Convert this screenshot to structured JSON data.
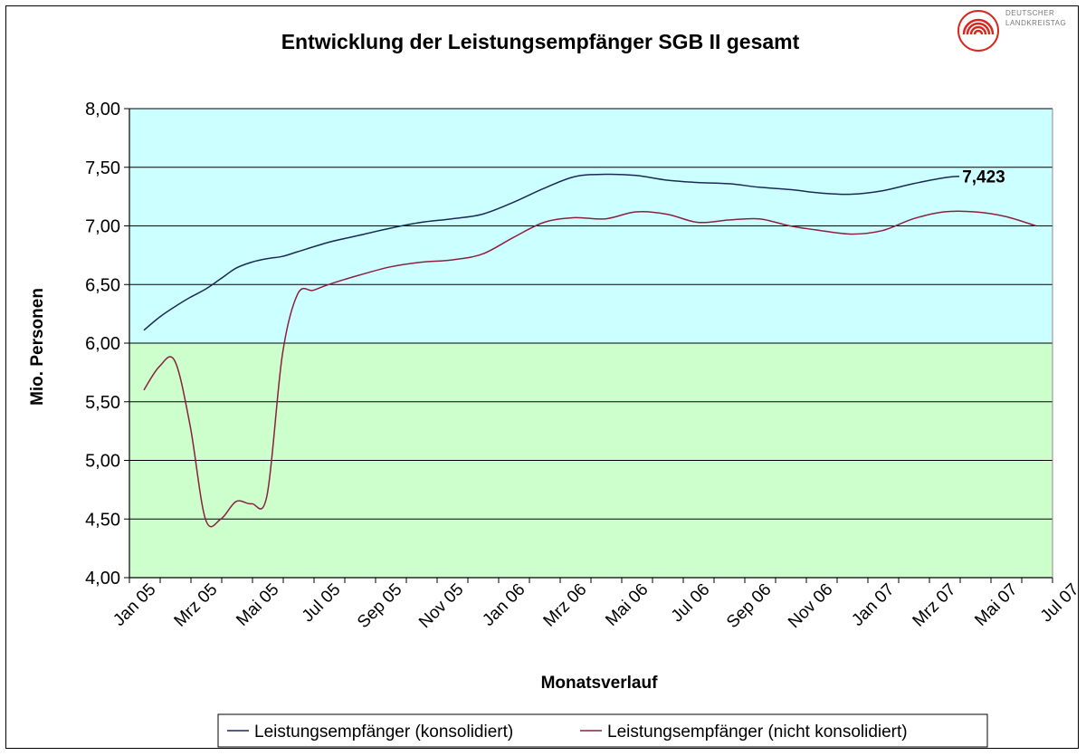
{
  "logo": {
    "line1": "DEUTSCHER",
    "line2": "LANDKREISTAG",
    "color": "#d8281e"
  },
  "chart_data": {
    "type": "line",
    "title": "Entwicklung der Leistungsempfänger SGB II gesamt",
    "xlabel": "Monatsverlauf",
    "ylabel": "Mio. Personen",
    "ylim": [
      4.0,
      8.0
    ],
    "yticks": [
      "4,00",
      "4,50",
      "5,00",
      "5,50",
      "6,00",
      "6,50",
      "7,00",
      "7,50",
      "8,00"
    ],
    "ytick_values": [
      4.0,
      4.5,
      5.0,
      5.5,
      6.0,
      6.5,
      7.0,
      7.5,
      8.0
    ],
    "xtick_labels": [
      "Jan 05",
      "Mrz 05",
      "Mai 05",
      "Jul 05",
      "Sep 05",
      "Nov 05",
      "Jan 06",
      "Mrz 06",
      "Mai 06",
      "Jul 06",
      "Sep 06",
      "Nov 06",
      "Jan 07",
      "Mrz 07",
      "Mai 07",
      "Jul 07"
    ],
    "bands": [
      {
        "from": 4.0,
        "to": 6.0,
        "color": "#ccffcc"
      },
      {
        "from": 6.0,
        "to": 8.0,
        "color": "#ccffff"
      }
    ],
    "grid": true,
    "legend_position": "bottom",
    "annotation": {
      "text": "7,423",
      "x": 26.3,
      "y": 7.423
    },
    "series": [
      {
        "name": "Leistungsempfänger (konsolidiert)",
        "color": "#1a2a55",
        "x": [
          0,
          0.5,
          1,
          1.5,
          2,
          2.5,
          3,
          3.5,
          4,
          4.5,
          5,
          6,
          7,
          8,
          9,
          10,
          11,
          12,
          13,
          14,
          15,
          16,
          17,
          18,
          19,
          20,
          21,
          22,
          23,
          24,
          25,
          26,
          26.5
        ],
        "values": [
          6.11,
          6.22,
          6.31,
          6.39,
          6.46,
          6.55,
          6.64,
          6.69,
          6.72,
          6.74,
          6.78,
          6.86,
          6.92,
          6.98,
          7.03,
          7.06,
          7.1,
          7.2,
          7.32,
          7.42,
          7.44,
          7.43,
          7.39,
          7.37,
          7.36,
          7.33,
          7.31,
          7.28,
          7.27,
          7.3,
          7.36,
          7.41,
          7.423
        ]
      },
      {
        "name": "Leistungsempfänger (nicht konsolidiert)",
        "color": "#8b2040",
        "x": [
          0,
          0.5,
          1,
          1.5,
          2,
          2.5,
          3,
          3.5,
          4,
          4.5,
          5,
          5.5,
          6,
          7,
          8,
          9,
          10,
          11,
          12,
          13,
          14,
          15,
          16,
          17,
          18,
          19,
          20,
          21,
          22,
          23,
          24,
          25,
          26,
          27,
          28,
          29
        ],
        "values": [
          5.6,
          5.8,
          5.85,
          5.3,
          4.5,
          4.5,
          4.65,
          4.63,
          4.7,
          5.9,
          6.42,
          6.45,
          6.5,
          6.58,
          6.65,
          6.69,
          6.71,
          6.76,
          6.9,
          7.03,
          7.07,
          7.06,
          7.12,
          7.1,
          7.03,
          7.05,
          7.06,
          7.0,
          6.96,
          6.93,
          6.96,
          7.06,
          7.12,
          7.12,
          7.08,
          7.0
        ]
      }
    ]
  }
}
